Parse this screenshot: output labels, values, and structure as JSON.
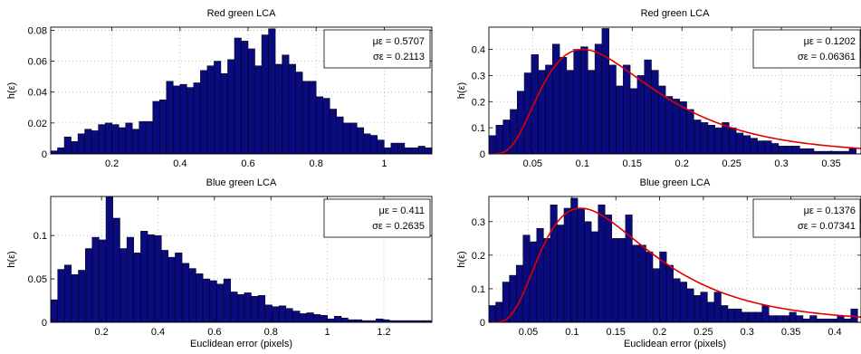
{
  "chart_data": [
    {
      "type": "bar",
      "title": "Red green LCA",
      "xlabel": "",
      "ylabel": "h(ε)",
      "xlim": [
        0.02,
        1.14
      ],
      "ylim": [
        0,
        0.082
      ],
      "xticks": [
        0.2,
        0.4,
        0.6,
        0.8,
        1
      ],
      "xtick_labels": [
        "0.2",
        "0.4",
        "0.6",
        "0.8",
        "1"
      ],
      "yticks": [
        0,
        0.02,
        0.04,
        0.06,
        0.08
      ],
      "ytick_labels": [
        "0",
        "0.02",
        "0.04",
        "0.06",
        "0.08"
      ],
      "legend": [
        "με = 0.5707",
        "σε = 0.2113"
      ],
      "legend_position": "top-right",
      "bar_color": "#0b0b80",
      "bin_width": 0.02,
      "x": [
        0.03,
        0.05,
        0.07,
        0.09,
        0.11,
        0.13,
        0.15,
        0.17,
        0.19,
        0.21,
        0.23,
        0.25,
        0.27,
        0.29,
        0.31,
        0.33,
        0.35,
        0.37,
        0.39,
        0.41,
        0.43,
        0.45,
        0.47,
        0.49,
        0.51,
        0.53,
        0.55,
        0.57,
        0.59,
        0.61,
        0.63,
        0.65,
        0.67,
        0.69,
        0.71,
        0.73,
        0.75,
        0.77,
        0.79,
        0.81,
        0.83,
        0.85,
        0.87,
        0.89,
        0.91,
        0.93,
        0.95,
        0.97,
        0.99,
        1.01,
        1.03,
        1.05,
        1.07,
        1.09,
        1.11,
        1.13
      ],
      "values": [
        0.002,
        0.004,
        0.011,
        0.008,
        0.013,
        0.016,
        0.015,
        0.019,
        0.02,
        0.019,
        0.017,
        0.02,
        0.016,
        0.021,
        0.021,
        0.034,
        0.035,
        0.047,
        0.044,
        0.045,
        0.043,
        0.046,
        0.054,
        0.057,
        0.06,
        0.052,
        0.061,
        0.075,
        0.073,
        0.068,
        0.057,
        0.077,
        0.081,
        0.058,
        0.064,
        0.058,
        0.053,
        0.047,
        0.047,
        0.037,
        0.036,
        0.029,
        0.024,
        0.02,
        0.02,
        0.017,
        0.013,
        0.012,
        0.009,
        0.004,
        0.007,
        0.007,
        0.004,
        0.004,
        0.005,
        0.004
      ],
      "fit": null
    },
    {
      "type": "bar",
      "title": "Red green LCA",
      "xlabel": "",
      "ylabel": "h(ε)",
      "xlim": [
        0.006,
        0.38
      ],
      "ylim": [
        0,
        0.485
      ],
      "xticks": [
        0.05,
        0.1,
        0.15,
        0.2,
        0.25,
        0.3,
        0.35
      ],
      "xtick_labels": [
        "0.05",
        "0.1",
        "0.15",
        "0.2",
        "0.25",
        "0.3",
        "0.35"
      ],
      "yticks": [
        0,
        0.1,
        0.2,
        0.3,
        0.4
      ],
      "ytick_labels": [
        "0",
        "0.1",
        "0.2",
        "0.3",
        "0.4"
      ],
      "legend": [
        "με = 0.1202",
        "σε = 0.06361"
      ],
      "legend_position": "top-right",
      "bar_color": "#0b0b80",
      "fit_color": "#e00000",
      "bin_width": 0.0071,
      "x": [
        0.0096,
        0.0167,
        0.0238,
        0.0309,
        0.038,
        0.0451,
        0.0522,
        0.0593,
        0.0664,
        0.0735,
        0.0806,
        0.0877,
        0.0948,
        0.1019,
        0.109,
        0.1161,
        0.1232,
        0.1303,
        0.1374,
        0.1445,
        0.1516,
        0.1587,
        0.1658,
        0.1729,
        0.18,
        0.1871,
        0.1942,
        0.2013,
        0.2084,
        0.2155,
        0.2226,
        0.2297,
        0.2368,
        0.2439,
        0.251,
        0.2581,
        0.2652,
        0.2723,
        0.2794,
        0.2865,
        0.2936,
        0.3007,
        0.3078,
        0.3149,
        0.322,
        0.3291,
        0.3362,
        0.3433,
        0.3504,
        0.3575,
        0.3646,
        0.3717
      ],
      "values": [
        0.07,
        0.11,
        0.13,
        0.17,
        0.24,
        0.31,
        0.38,
        0.32,
        0.34,
        0.42,
        0.37,
        0.32,
        0.4,
        0.41,
        0.32,
        0.42,
        0.48,
        0.34,
        0.26,
        0.34,
        0.25,
        0.3,
        0.36,
        0.32,
        0.26,
        0.22,
        0.21,
        0.2,
        0.17,
        0.13,
        0.12,
        0.11,
        0.1,
        0.12,
        0.1,
        0.08,
        0.07,
        0.06,
        0.05,
        0.05,
        0.04,
        0.03,
        0.03,
        0.03,
        0.02,
        0.02,
        0.01,
        0.01,
        0.01,
        0.01,
        0.01,
        0.02
      ],
      "fit": {
        "type": "lognormal-like",
        "peak_x": 0.1,
        "peak_y": 0.4
      }
    },
    {
      "type": "bar",
      "title": "Blue green LCA",
      "xlabel": "Euclidean error (pixels)",
      "ylabel": "h(ε)",
      "xlim": [
        0.02,
        1.37
      ],
      "ylim": [
        0,
        0.145
      ],
      "xticks": [
        0.2,
        0.4,
        0.6,
        0.8,
        1,
        1.2
      ],
      "xtick_labels": [
        "0.2",
        "0.4",
        "0.6",
        "0.8",
        "1",
        "1.2"
      ],
      "yticks": [
        0,
        0.05,
        0.1
      ],
      "ytick_labels": [
        "0",
        "0.05",
        "0.1"
      ],
      "legend": [
        "με = 0.411",
        "σε = 0.2635"
      ],
      "legend_position": "top-right",
      "bar_color": "#0b0b80",
      "bin_width": 0.0245,
      "x": [
        0.032,
        0.057,
        0.081,
        0.106,
        0.13,
        0.155,
        0.179,
        0.204,
        0.228,
        0.253,
        0.277,
        0.302,
        0.326,
        0.351,
        0.375,
        0.4,
        0.424,
        0.449,
        0.473,
        0.498,
        0.522,
        0.547,
        0.571,
        0.596,
        0.62,
        0.645,
        0.669,
        0.694,
        0.718,
        0.743,
        0.767,
        0.792,
        0.816,
        0.841,
        0.865,
        0.89,
        0.914,
        0.939,
        0.963,
        0.988,
        1.012,
        1.037,
        1.061,
        1.086,
        1.11,
        1.135,
        1.159,
        1.184,
        1.208,
        1.233,
        1.257,
        1.282,
        1.306,
        1.331,
        1.355
      ],
      "values": [
        0.026,
        0.061,
        0.066,
        0.055,
        0.06,
        0.085,
        0.098,
        0.095,
        0.145,
        0.12,
        0.085,
        0.098,
        0.08,
        0.105,
        0.101,
        0.1,
        0.083,
        0.075,
        0.08,
        0.068,
        0.062,
        0.056,
        0.05,
        0.048,
        0.044,
        0.05,
        0.035,
        0.032,
        0.034,
        0.03,
        0.031,
        0.02,
        0.018,
        0.019,
        0.016,
        0.013,
        0.01,
        0.011,
        0.009,
        0.008,
        0.004,
        0.007,
        0.005,
        0.003,
        0.003,
        0.002,
        0.002,
        0.004,
        0.003,
        0.002,
        0.002,
        0.002,
        0.002,
        0.002,
        0.002
      ],
      "fit": null
    },
    {
      "type": "bar",
      "title": "Blue green LCA",
      "xlabel": "Euclidean error (pixels)",
      "ylabel": "h(ε)",
      "xlim": [
        0.005,
        0.43
      ],
      "ylim": [
        0,
        0.375
      ],
      "xticks": [
        0.05,
        0.1,
        0.15,
        0.2,
        0.25,
        0.3,
        0.35,
        0.4
      ],
      "xtick_labels": [
        "0.05",
        "0.1",
        "0.15",
        "0.2",
        "0.25",
        "0.3",
        "0.35",
        "0.4"
      ],
      "yticks": [
        0,
        0.1,
        0.2,
        0.3
      ],
      "ytick_labels": [
        "0",
        "0.1",
        "0.2",
        "0.3"
      ],
      "legend": [
        "με = 0.1376",
        "σε = 0.07341"
      ],
      "legend_position": "top-right",
      "bar_color": "#0b0b80",
      "fit_color": "#e00000",
      "bin_width": 0.0078,
      "x": [
        0.0089,
        0.0167,
        0.0245,
        0.0323,
        0.0401,
        0.0479,
        0.0557,
        0.0635,
        0.0713,
        0.0791,
        0.0869,
        0.0947,
        0.1025,
        0.1103,
        0.1181,
        0.1259,
        0.1337,
        0.1415,
        0.1493,
        0.1571,
        0.1649,
        0.1727,
        0.1805,
        0.1883,
        0.1961,
        0.2039,
        0.2117,
        0.2195,
        0.2273,
        0.2351,
        0.2429,
        0.2507,
        0.2585,
        0.2663,
        0.2741,
        0.2819,
        0.2897,
        0.2975,
        0.3053,
        0.3131,
        0.3209,
        0.3287,
        0.3365,
        0.3443,
        0.3521,
        0.3599,
        0.3677,
        0.3755,
        0.3833,
        0.3911,
        0.3989,
        0.4067,
        0.4145,
        0.4223
      ],
      "values": [
        0.05,
        0.06,
        0.12,
        0.14,
        0.17,
        0.26,
        0.24,
        0.28,
        0.25,
        0.35,
        0.29,
        0.34,
        0.37,
        0.34,
        0.3,
        0.27,
        0.35,
        0.32,
        0.25,
        0.25,
        0.32,
        0.23,
        0.23,
        0.21,
        0.16,
        0.21,
        0.17,
        0.13,
        0.12,
        0.1,
        0.08,
        0.09,
        0.06,
        0.09,
        0.05,
        0.04,
        0.04,
        0.03,
        0.03,
        0.03,
        0.05,
        0.02,
        0.02,
        0.02,
        0.03,
        0.02,
        0.01,
        0.02,
        0.01,
        0.01,
        0.01,
        0.02,
        0.01,
        0.04
      ],
      "fit": {
        "type": "lognormal-like",
        "peak_x": 0.11,
        "peak_y": 0.34
      }
    }
  ]
}
